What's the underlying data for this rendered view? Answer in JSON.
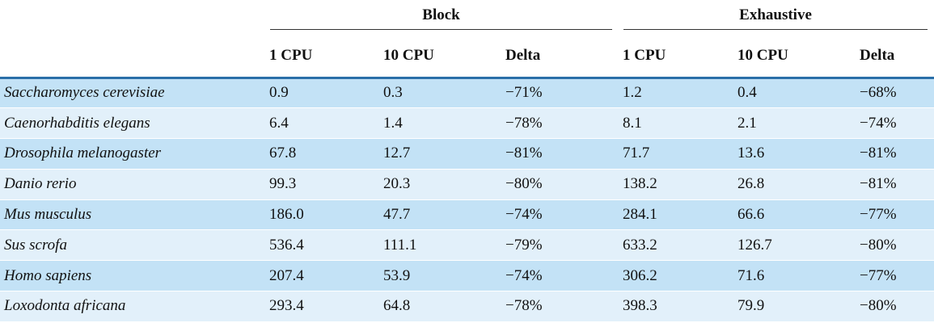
{
  "table": {
    "group_headers": [
      "Block",
      "Exhaustive"
    ],
    "columns": [
      "1 CPU",
      "10 CPU",
      "Delta",
      "1 CPU",
      "10 CPU",
      "Delta"
    ],
    "rows": [
      [
        "Saccharomyces cerevisiae",
        "0.9",
        "0.3",
        "−71%",
        "1.2",
        "0.4",
        "−68%"
      ],
      [
        "Caenorhabditis elegans",
        "6.4",
        "1.4",
        "−78%",
        "8.1",
        "2.1",
        "−74%"
      ],
      [
        "Drosophila melanogaster",
        "67.8",
        "12.7",
        "−81%",
        "71.7",
        "13.6",
        "−81%"
      ],
      [
        "Danio rerio",
        "99.3",
        "20.3",
        "−80%",
        "138.2",
        "26.8",
        "−81%"
      ],
      [
        "Mus musculus",
        "186.0",
        "47.7",
        "−74%",
        "284.1",
        "66.6",
        "−77%"
      ],
      [
        "Sus scrofa",
        "536.4",
        "111.1",
        "−79%",
        "633.2",
        "126.7",
        "−80%"
      ],
      [
        "Homo sapiens",
        "207.4",
        "53.9",
        "−74%",
        "306.2",
        "71.6",
        "−77%"
      ],
      [
        "Loxodonta africana",
        "293.4",
        "64.8",
        "−78%",
        "398.3",
        "79.9",
        "−80%"
      ]
    ]
  }
}
